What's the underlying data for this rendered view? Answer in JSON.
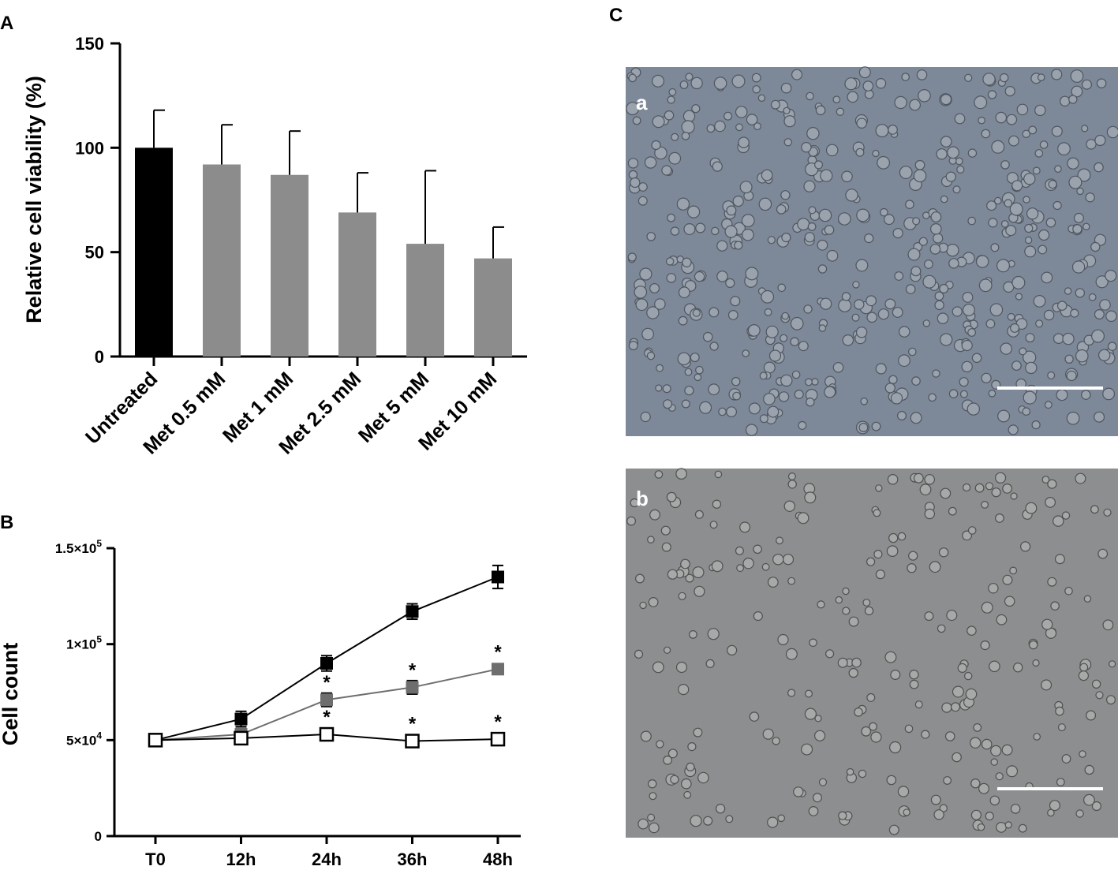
{
  "panels": {
    "a": {
      "letter": "A"
    },
    "b": {
      "letter": "B"
    },
    "c": {
      "letter": "C",
      "image_a_label": "a",
      "image_b_label": "b"
    }
  },
  "chart_data": [
    {
      "panel": "A",
      "type": "bar",
      "ylabel": "Relative cell viability (%)",
      "ylim": [
        0,
        150
      ],
      "yticks": [
        0,
        50,
        100,
        150
      ],
      "categories": [
        "Untreated",
        "Met 0.5 mM",
        "Met 1 mM",
        "Met 2.5 mM",
        "Met 5 mM",
        "Met 10 mM"
      ],
      "values": [
        100,
        92,
        87,
        69,
        54,
        47
      ],
      "errors": [
        18,
        19,
        21,
        19,
        35,
        15
      ],
      "colors": [
        "#000000",
        "#8c8c8c",
        "#8c8c8c",
        "#8c8c8c",
        "#8c8c8c",
        "#8c8c8c"
      ]
    },
    {
      "panel": "B",
      "type": "line",
      "ylabel": "Cell count",
      "ylim": [
        0,
        150000
      ],
      "yticks": [
        {
          "value": 0,
          "base": "0",
          "exp": ""
        },
        {
          "value": 50000,
          "base": "5×10",
          "exp": "4"
        },
        {
          "value": 100000,
          "base": "1×10",
          "exp": "5"
        },
        {
          "value": 150000,
          "base": "1.5×10",
          "exp": "5"
        }
      ],
      "categories": [
        "T0",
        "12h",
        "24h",
        "36h",
        "48h"
      ],
      "series": [
        {
          "marker": "filled",
          "color": "#000000",
          "line": "#000000",
          "values": [
            50000,
            61000,
            90000,
            117000,
            135000
          ],
          "errors": [
            0,
            4000,
            4000,
            4000,
            6000
          ],
          "stars": [
            false,
            false,
            false,
            false,
            false
          ]
        },
        {
          "marker": "filled",
          "color": "#6e6e6e",
          "line": "#6e6e6e",
          "values": [
            50000,
            53000,
            71000,
            77500,
            87000
          ],
          "errors": [
            0,
            3000,
            3500,
            3500,
            2000
          ],
          "stars": [
            false,
            false,
            true,
            true,
            true
          ]
        },
        {
          "marker": "open",
          "color": "#000000",
          "line": "#000000",
          "values": [
            50000,
            51000,
            53000,
            49500,
            50500
          ],
          "errors": [
            0,
            2000,
            2000,
            2000,
            2000
          ],
          "stars": [
            false,
            false,
            true,
            true,
            true
          ]
        }
      ],
      "star_label": "*"
    }
  ],
  "images": {
    "a": {
      "background": "#7d8898"
    },
    "b": {
      "background": "#8c8e8f"
    }
  }
}
